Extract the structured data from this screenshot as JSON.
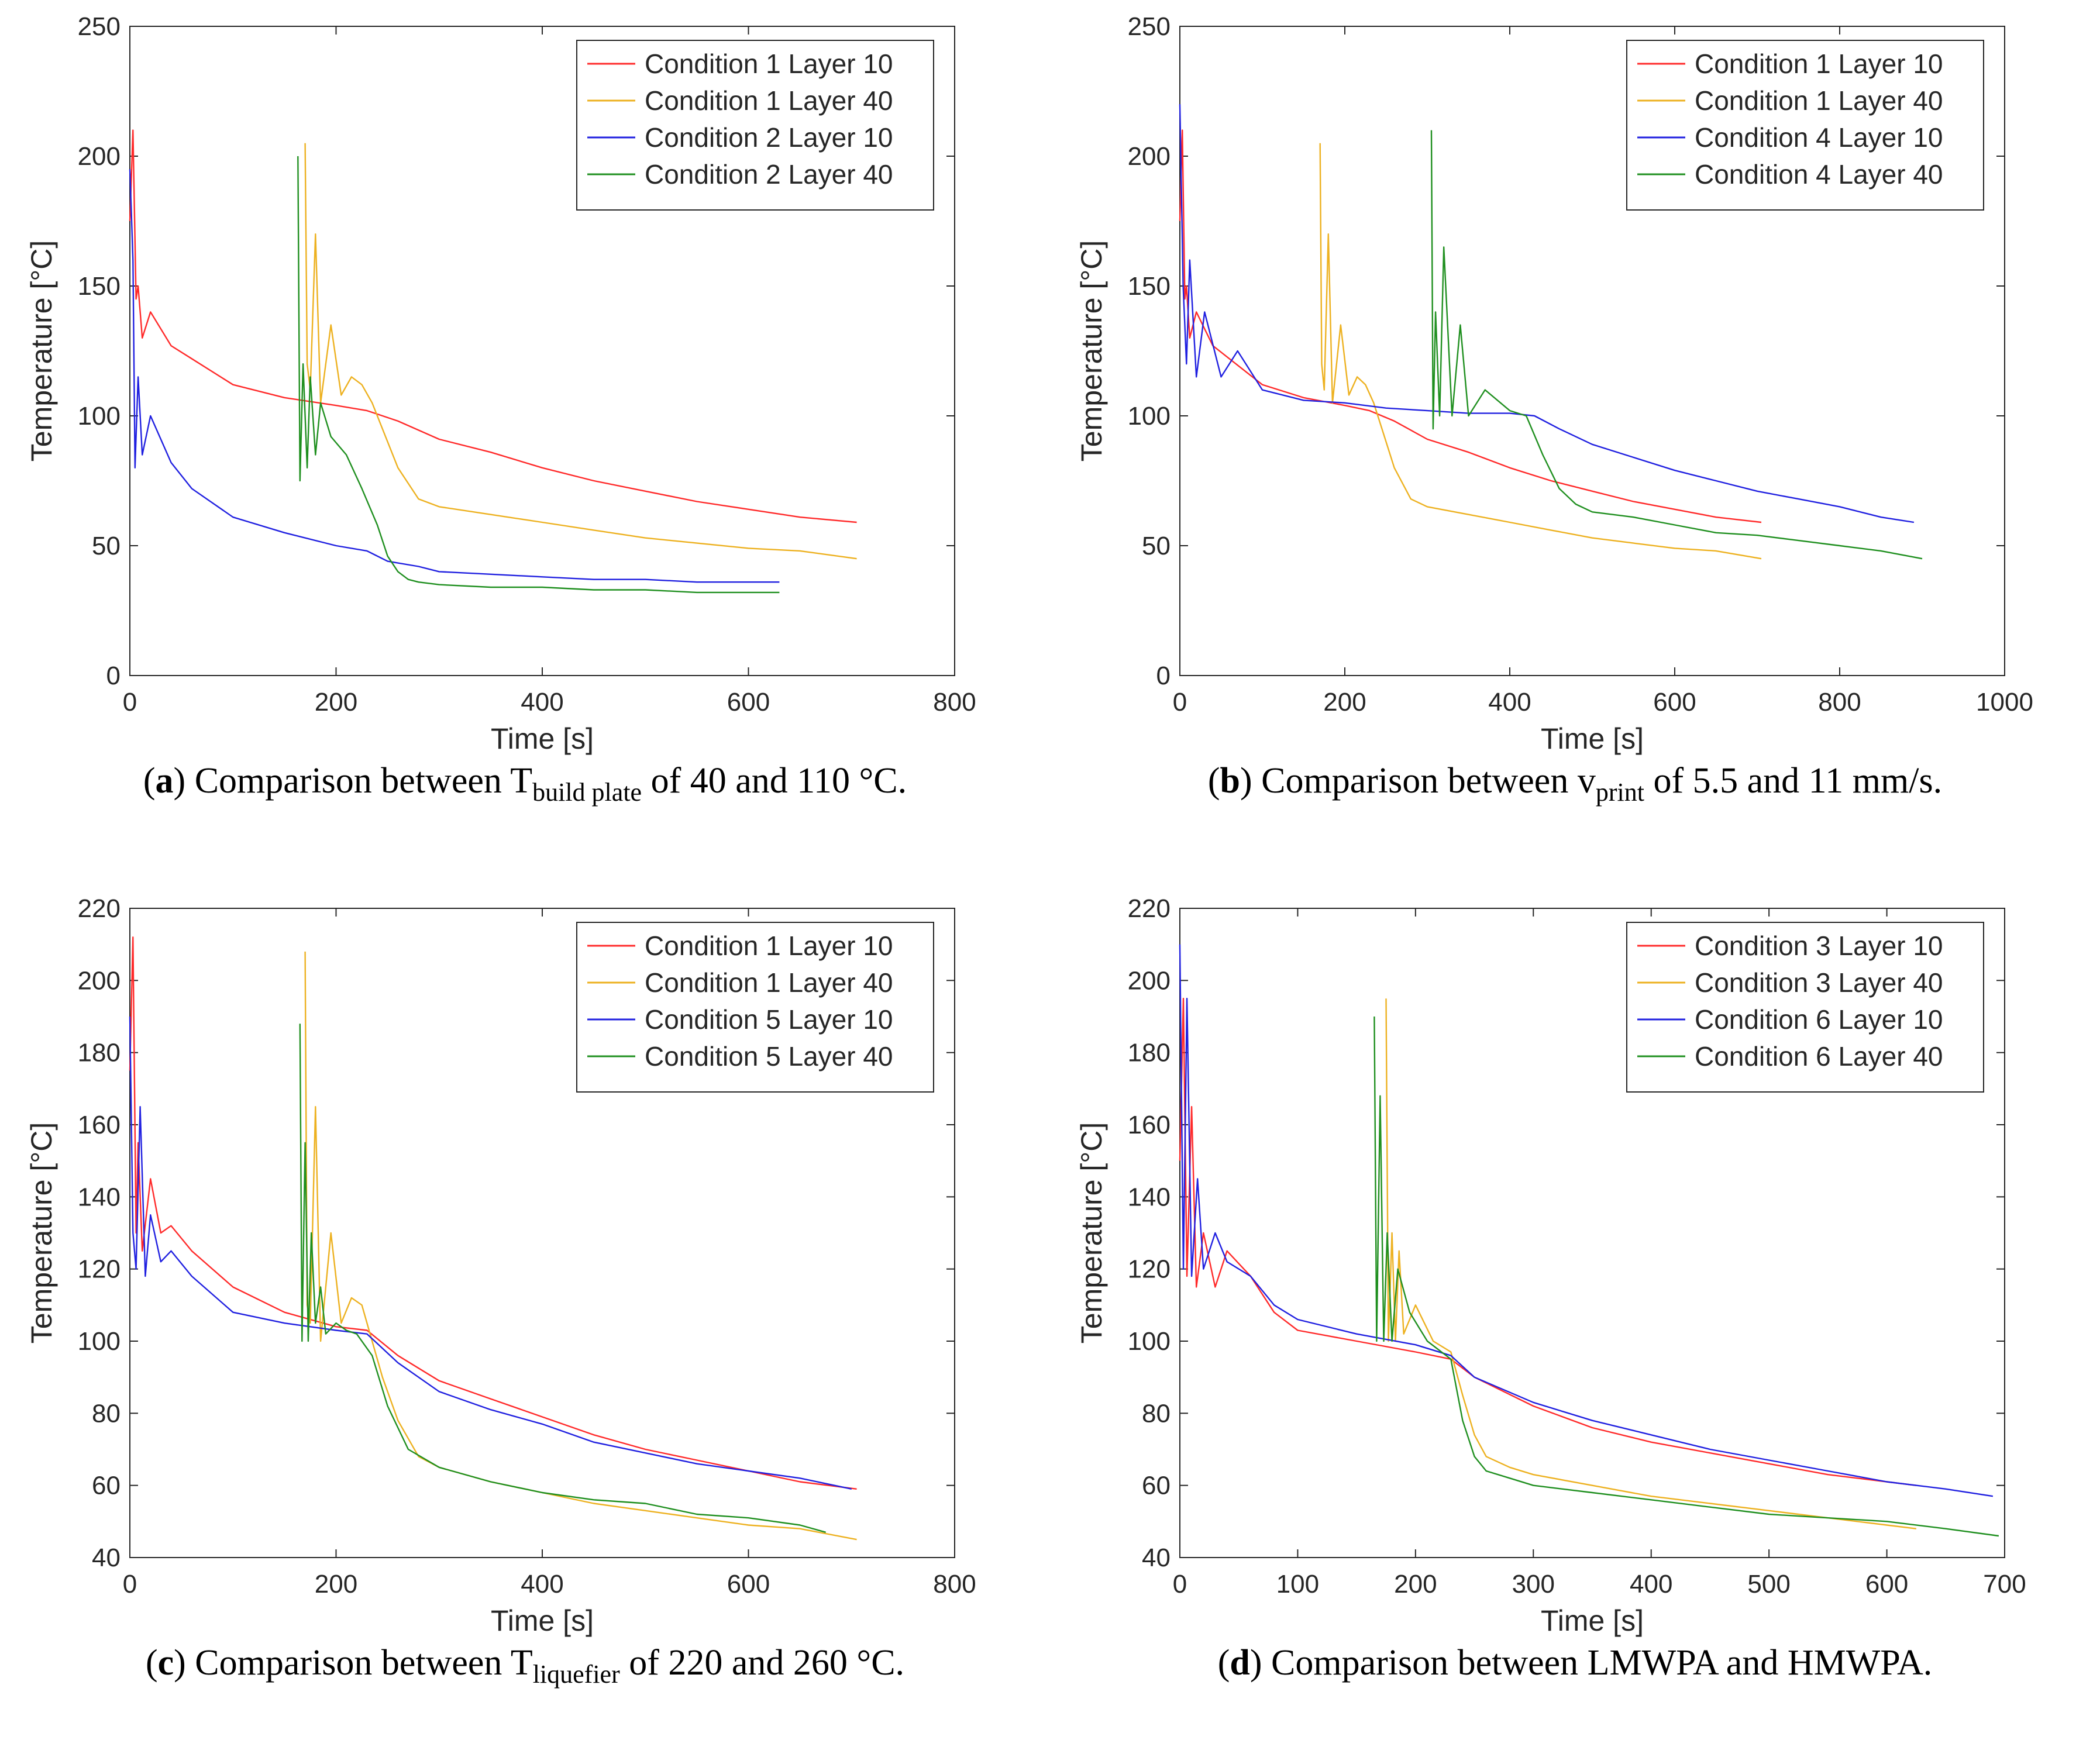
{
  "chart_data": [
    {
      "type": "line",
      "panel_label": "a",
      "caption": {
        "prefix": "Comparison between T",
        "subscript": "build plate",
        "suffix": " of 40 and 110 °C."
      },
      "xlabel": "Time [s]",
      "ylabel": "Temperature [°C]",
      "xlim": [
        0,
        800
      ],
      "ylim": [
        0,
        250
      ],
      "xticks": [
        0,
        200,
        400,
        600,
        800
      ],
      "yticks": [
        0,
        50,
        100,
        150,
        200,
        250
      ],
      "grid": false,
      "legend_position": "top-right",
      "series": [
        {
          "name": "Condition 1 Layer 10",
          "color": "#ff2a2a",
          "x": [
            0,
            3,
            6,
            8,
            12,
            20,
            40,
            60,
            100,
            150,
            200,
            230,
            260,
            300,
            350,
            400,
            450,
            500,
            550,
            600,
            650,
            705
          ],
          "y": [
            175,
            210,
            145,
            150,
            130,
            140,
            127,
            122,
            112,
            107,
            104,
            102,
            98,
            91,
            86,
            80,
            75,
            71,
            67,
            64,
            61,
            59
          ]
        },
        {
          "name": "Condition 1 Layer 40",
          "color": "#edb120",
          "x": [
            170,
            172,
            175,
            180,
            185,
            195,
            205,
            215,
            225,
            235,
            245,
            260,
            280,
            300,
            350,
            400,
            450,
            500,
            550,
            600,
            650,
            705
          ],
          "y": [
            205,
            120,
            110,
            170,
            105,
            135,
            108,
            115,
            112,
            105,
            95,
            80,
            68,
            65,
            62,
            59,
            56,
            53,
            51,
            49,
            48,
            45
          ]
        },
        {
          "name": "Condition 2 Layer 10",
          "color": "#2020e0",
          "x": [
            0,
            3,
            5,
            8,
            12,
            20,
            40,
            60,
            100,
            150,
            200,
            230,
            250,
            280,
            300,
            350,
            400,
            450,
            500,
            550,
            600,
            630
          ],
          "y": [
            195,
            160,
            80,
            115,
            85,
            100,
            82,
            72,
            61,
            55,
            50,
            48,
            44,
            42,
            40,
            39,
            38,
            37,
            37,
            36,
            36,
            36
          ]
        },
        {
          "name": "Condition 2 Layer 40",
          "color": "#1f8f1f",
          "x": [
            163,
            165,
            168,
            172,
            175,
            180,
            185,
            195,
            210,
            225,
            240,
            250,
            260,
            270,
            280,
            300,
            350,
            400,
            450,
            500,
            550,
            600,
            630
          ],
          "y": [
            200,
            75,
            120,
            80,
            115,
            85,
            105,
            92,
            85,
            72,
            58,
            46,
            40,
            37,
            36,
            35,
            34,
            34,
            33,
            33,
            32,
            32,
            32
          ]
        }
      ]
    },
    {
      "type": "line",
      "panel_label": "b",
      "caption": {
        "prefix": "Comparison between v",
        "subscript": "print",
        "suffix": " of 5.5 and 11 mm/s."
      },
      "xlabel": "Time [s]",
      "ylabel": "Temperature [°C]",
      "xlim": [
        0,
        1000
      ],
      "ylim": [
        0,
        250
      ],
      "xticks": [
        0,
        200,
        400,
        600,
        800,
        1000
      ],
      "yticks": [
        0,
        50,
        100,
        150,
        200,
        250
      ],
      "grid": false,
      "legend_position": "top-right",
      "series": [
        {
          "name": "Condition 1 Layer 10",
          "color": "#ff2a2a",
          "x": [
            0,
            3,
            6,
            8,
            12,
            20,
            40,
            60,
            100,
            150,
            200,
            230,
            260,
            300,
            350,
            400,
            450,
            500,
            550,
            600,
            650,
            705
          ],
          "y": [
            175,
            210,
            145,
            150,
            130,
            140,
            127,
            122,
            112,
            107,
            104,
            102,
            98,
            91,
            86,
            80,
            75,
            71,
            67,
            64,
            61,
            59
          ]
        },
        {
          "name": "Condition 1 Layer 40",
          "color": "#edb120",
          "x": [
            170,
            172,
            175,
            180,
            185,
            195,
            205,
            215,
            225,
            235,
            245,
            260,
            280,
            300,
            350,
            400,
            450,
            500,
            550,
            600,
            650,
            705
          ],
          "y": [
            205,
            120,
            110,
            170,
            105,
            135,
            108,
            115,
            112,
            105,
            95,
            80,
            68,
            65,
            62,
            59,
            56,
            53,
            51,
            49,
            48,
            45
          ]
        },
        {
          "name": "Condition 4 Layer 10",
          "color": "#2020e0",
          "x": [
            0,
            4,
            8,
            12,
            20,
            30,
            50,
            70,
            100,
            150,
            200,
            250,
            300,
            350,
            400,
            430,
            460,
            500,
            550,
            600,
            650,
            700,
            750,
            800,
            850,
            890
          ],
          "y": [
            220,
            150,
            120,
            160,
            115,
            140,
            115,
            125,
            110,
            106,
            105,
            103,
            102,
            101,
            101,
            100,
            95,
            89,
            84,
            79,
            75,
            71,
            68,
            65,
            61,
            59
          ]
        },
        {
          "name": "Condition 4 Layer 40",
          "color": "#1f8f1f",
          "x": [
            305,
            307,
            310,
            315,
            320,
            330,
            340,
            350,
            370,
            400,
            420,
            440,
            460,
            480,
            500,
            550,
            600,
            650,
            700,
            750,
            800,
            850,
            900
          ],
          "y": [
            210,
            95,
            140,
            100,
            165,
            100,
            135,
            100,
            110,
            102,
            100,
            85,
            72,
            66,
            63,
            61,
            58,
            55,
            54,
            52,
            50,
            48,
            45
          ]
        }
      ]
    },
    {
      "type": "line",
      "panel_label": "c",
      "caption": {
        "prefix": "Comparison between T",
        "subscript": "liquefier",
        "suffix": " of 220 and 260 °C."
      },
      "xlabel": "Time [s]",
      "ylabel": "Temperature [°C]",
      "xlim": [
        0,
        800
      ],
      "ylim": [
        40,
        220
      ],
      "xticks": [
        0,
        200,
        400,
        600,
        800
      ],
      "yticks": [
        40,
        60,
        80,
        100,
        120,
        140,
        160,
        180,
        200,
        220
      ],
      "grid": false,
      "legend_position": "top-right",
      "series": [
        {
          "name": "Condition 1 Layer 10",
          "color": "#ff2a2a",
          "x": [
            0,
            3,
            6,
            8,
            12,
            20,
            30,
            40,
            60,
            100,
            150,
            200,
            230,
            260,
            300,
            350,
            400,
            450,
            500,
            550,
            600,
            650,
            705
          ],
          "y": [
            175,
            212,
            130,
            155,
            125,
            145,
            130,
            132,
            125,
            115,
            108,
            104,
            103,
            96,
            89,
            84,
            79,
            74,
            70,
            67,
            64,
            61,
            59
          ]
        },
        {
          "name": "Condition 1 Layer 40",
          "color": "#edb120",
          "x": [
            170,
            172,
            175,
            180,
            185,
            195,
            205,
            215,
            225,
            235,
            245,
            260,
            280,
            300,
            350,
            400,
            450,
            500,
            550,
            600,
            650,
            705
          ],
          "y": [
            208,
            110,
            105,
            165,
            100,
            130,
            105,
            112,
            110,
            100,
            90,
            78,
            68,
            65,
            61,
            58,
            55,
            53,
            51,
            49,
            48,
            45
          ]
        },
        {
          "name": "Condition 5 Layer 10",
          "color": "#2020e0",
          "x": [
            0,
            3,
            6,
            10,
            15,
            20,
            30,
            40,
            60,
            100,
            150,
            200,
            230,
            260,
            300,
            350,
            400,
            450,
            500,
            550,
            600,
            650,
            700
          ],
          "y": [
            190,
            130,
            120,
            165,
            118,
            135,
            122,
            125,
            118,
            108,
            105,
            103,
            102,
            94,
            86,
            81,
            77,
            72,
            69,
            66,
            64,
            62,
            59
          ]
        },
        {
          "name": "Condition 5 Layer 40",
          "color": "#1f8f1f",
          "x": [
            165,
            167,
            170,
            173,
            176,
            180,
            185,
            190,
            200,
            210,
            220,
            235,
            250,
            270,
            300,
            350,
            400,
            450,
            500,
            550,
            600,
            650,
            675
          ],
          "y": [
            188,
            100,
            155,
            100,
            130,
            105,
            115,
            102,
            105,
            103,
            102,
            96,
            82,
            70,
            65,
            61,
            58,
            56,
            55,
            52,
            51,
            49,
            47
          ]
        }
      ]
    },
    {
      "type": "line",
      "panel_label": "d",
      "caption": {
        "prefix": "Comparison between LMWPA and HMWPA.",
        "subscript": "",
        "suffix": ""
      },
      "xlabel": "Time [s]",
      "ylabel": "Temperature [°C]",
      "xlim": [
        0,
        700
      ],
      "ylim": [
        40,
        220
      ],
      "xticks": [
        0,
        100,
        200,
        300,
        400,
        500,
        600,
        700
      ],
      "yticks": [
        40,
        60,
        80,
        100,
        120,
        140,
        160,
        180,
        200,
        220
      ],
      "grid": false,
      "legend_position": "top-right",
      "series": [
        {
          "name": "Condition 3 Layer 10",
          "color": "#ff2a2a",
          "x": [
            0,
            3,
            6,
            10,
            14,
            20,
            30,
            40,
            60,
            80,
            100,
            150,
            200,
            230,
            250,
            300,
            350,
            400,
            450,
            500,
            550,
            600,
            625
          ],
          "y": [
            150,
            195,
            118,
            165,
            115,
            130,
            115,
            125,
            118,
            108,
            103,
            100,
            97,
            95,
            90,
            82,
            76,
            72,
            69,
            66,
            63,
            61,
            60
          ]
        },
        {
          "name": "Condition 3 Layer 40",
          "color": "#edb120",
          "x": [
            175,
            177,
            180,
            183,
            186,
            190,
            200,
            215,
            230,
            240,
            250,
            260,
            280,
            300,
            350,
            400,
            450,
            500,
            550,
            600,
            625
          ],
          "y": [
            195,
            100,
            130,
            100,
            125,
            102,
            110,
            100,
            97,
            85,
            74,
            68,
            65,
            63,
            60,
            57,
            55,
            53,
            51,
            49,
            48
          ]
        },
        {
          "name": "Condition 6 Layer 10",
          "color": "#2020e0",
          "x": [
            0,
            3,
            6,
            10,
            15,
            20,
            30,
            40,
            60,
            80,
            100,
            150,
            200,
            230,
            250,
            300,
            350,
            400,
            450,
            500,
            550,
            600,
            650,
            690
          ],
          "y": [
            210,
            120,
            195,
            118,
            145,
            120,
            130,
            122,
            118,
            110,
            106,
            102,
            99,
            96,
            90,
            83,
            78,
            74,
            70,
            67,
            64,
            61,
            59,
            57
          ]
        },
        {
          "name": "Condition 6 Layer 40",
          "color": "#1f8f1f",
          "x": [
            165,
            167,
            170,
            173,
            176,
            180,
            185,
            195,
            210,
            230,
            240,
            250,
            260,
            280,
            300,
            350,
            400,
            450,
            500,
            550,
            600,
            650,
            695
          ],
          "y": [
            190,
            100,
            168,
            100,
            130,
            100,
            120,
            108,
            100,
            95,
            78,
            68,
            64,
            62,
            60,
            58,
            56,
            54,
            52,
            51,
            50,
            48,
            46
          ]
        }
      ]
    }
  ]
}
